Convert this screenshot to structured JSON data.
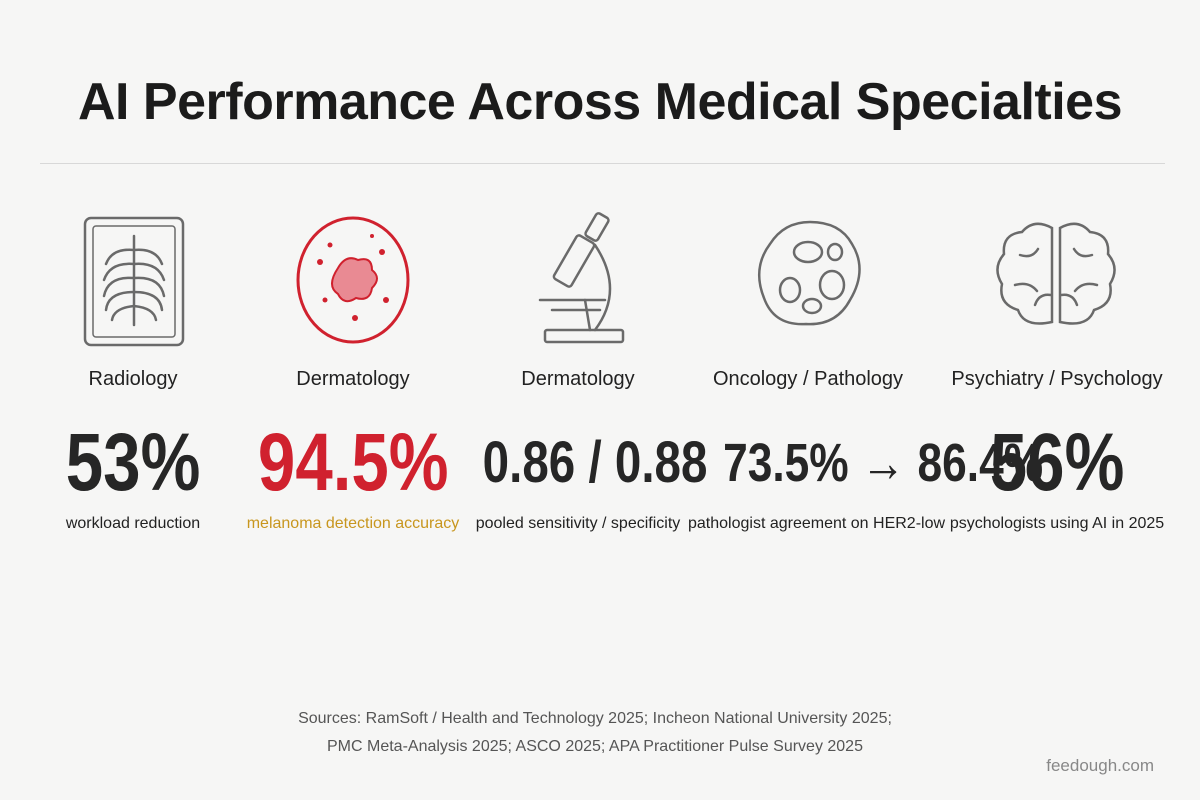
{
  "header": {
    "title": "AI Performance Across Medical Specialties"
  },
  "cards": [
    {
      "specialty": "Radiology",
      "stat": "53%",
      "caption": "workload reduction"
    },
    {
      "specialty": "Dermatology",
      "stat": "94.5%",
      "caption": "melanoma detection accuracy"
    },
    {
      "specialty": "Dermatology",
      "stat": "0.86 / 0.88",
      "caption": "pooled sensitivity / specificity"
    },
    {
      "specialty": "Oncology / Pathology",
      "stat": "73.5% → 86.4%",
      "caption": "pathologist agreement on HER2-low"
    },
    {
      "specialty": "Psychiatry / Psychology",
      "stat": "56%",
      "caption": "psychologists using AI in 2025"
    }
  ],
  "footer": {
    "sources": [
      "Sources: RamSoft / Health and Technology 2025; Incheon National University 2025;",
      "PMC Meta-Analysis 2025; ASCO 2025; APA Practitioner Pulse Survey 2025"
    ],
    "watermark": "feedough.com"
  }
}
